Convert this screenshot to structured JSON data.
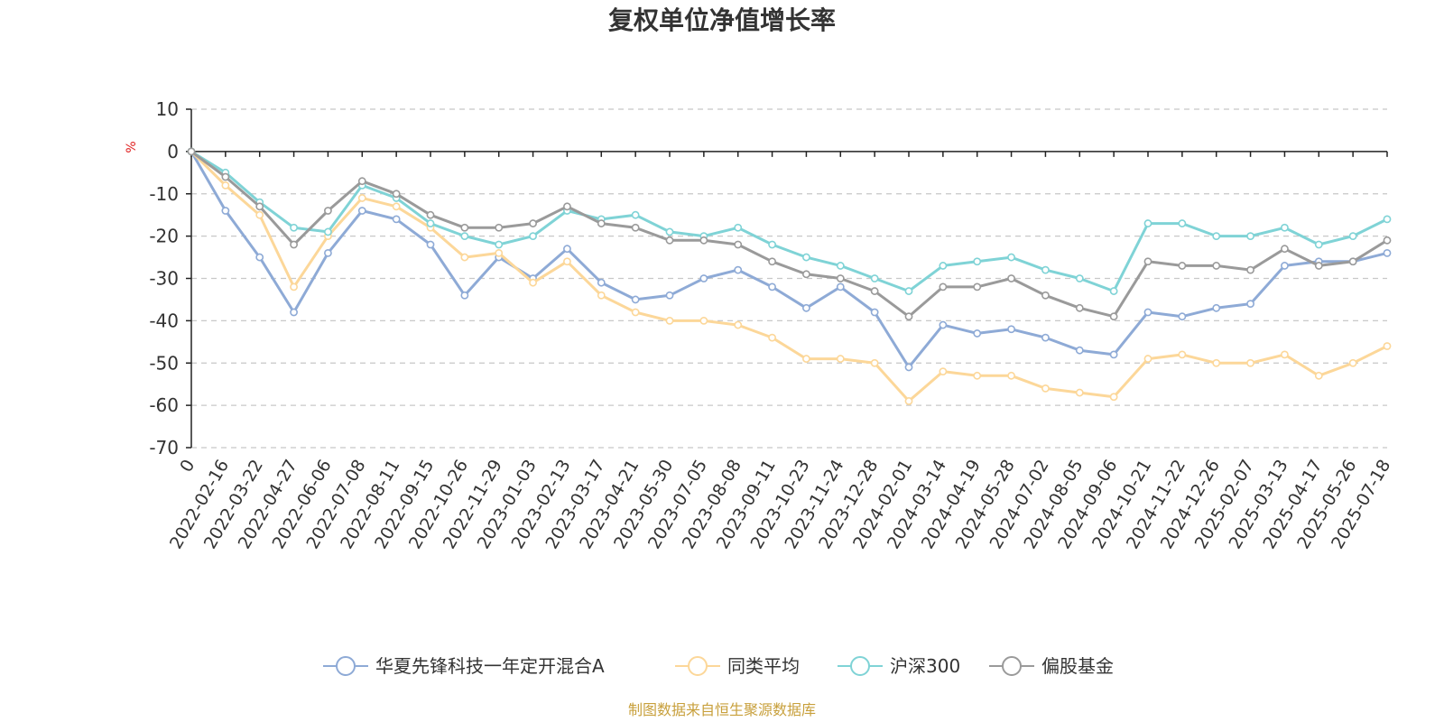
{
  "colors": {
    "fund": "#8eaad6",
    "peer_avg": "#fcd799",
    "csi300": "#7fd3d6",
    "equity_fund": "#9a9a9a",
    "unit": "#e02020",
    "source": "#c8a03c",
    "grid": "#c8c8c8",
    "axis": "#222222"
  },
  "source_note": "制图数据来自恒生聚源数据库",
  "chart_data": {
    "type": "line",
    "title": "复权单位净值增长率",
    "ylabel": "%",
    "ylim": [
      -70,
      10
    ],
    "yticks": [
      10,
      0,
      -10,
      -20,
      -30,
      -40,
      -50,
      -60,
      -70
    ],
    "grid": true,
    "legend_position": "bottom",
    "x_labels": [
      "0",
      "2022-02-16",
      "2022-03-22",
      "2022-04-27",
      "2022-06-06",
      "2022-07-08",
      "2022-08-11",
      "2022-09-15",
      "2022-10-26",
      "2022-11-29",
      "2023-01-03",
      "2023-02-13",
      "2023-03-17",
      "2023-04-21",
      "2023-05-30",
      "2023-07-05",
      "2023-08-08",
      "2023-09-11",
      "2023-10-23",
      "2023-11-24",
      "2023-12-28",
      "2024-02-01",
      "2024-03-14",
      "2024-04-19",
      "2024-05-28",
      "2024-07-02",
      "2024-08-05",
      "2024-09-06",
      "2024-10-21",
      "2024-11-22",
      "2024-12-26",
      "2025-02-07",
      "2025-03-13",
      "2025-04-17",
      "2025-05-26",
      "2025-07-18"
    ],
    "series": [
      {
        "name": "华夏先锋科技一年定开混合A",
        "color_key": "fund",
        "values": [
          0,
          -14,
          -25,
          -38,
          -24,
          -14,
          -16,
          -22,
          -34,
          -25,
          -30,
          -23,
          -31,
          -35,
          -34,
          -30,
          -28,
          -32,
          -37,
          -32,
          -38,
          -51,
          -41,
          -43,
          -42,
          -44,
          -47,
          -48,
          -38,
          -39,
          -37,
          -36,
          -27,
          -26,
          -26,
          -24
        ]
      },
      {
        "name": "同类平均",
        "color_key": "peer_avg",
        "values": [
          0,
          -8,
          -15,
          -32,
          -20,
          -11,
          -13,
          -18,
          -25,
          -24,
          -31,
          -26,
          -34,
          -38,
          -40,
          -40,
          -41,
          -44,
          -49,
          -49,
          -50,
          -59,
          -52,
          -53,
          -53,
          -56,
          -57,
          -58,
          -49,
          -48,
          -50,
          -50,
          -48,
          -53,
          -50,
          -46
        ]
      },
      {
        "name": "沪深300",
        "color_key": "csi300",
        "values": [
          0,
          -5,
          -12,
          -18,
          -19,
          -8,
          -11,
          -17,
          -20,
          -22,
          -20,
          -14,
          -16,
          -15,
          -19,
          -20,
          -18,
          -22,
          -25,
          -27,
          -30,
          -33,
          -27,
          -26,
          -25,
          -28,
          -30,
          -33,
          -17,
          -17,
          -20,
          -20,
          -18,
          -22,
          -20,
          -16
        ]
      },
      {
        "name": "偏股基金",
        "color_key": "equity_fund",
        "values": [
          0,
          -6,
          -13,
          -22,
          -14,
          -7,
          -10,
          -15,
          -18,
          -18,
          -17,
          -13,
          -17,
          -18,
          -21,
          -21,
          -22,
          -26,
          -29,
          -30,
          -33,
          -39,
          -32,
          -32,
          -30,
          -34,
          -37,
          -39,
          -26,
          -27,
          -27,
          -28,
          -23,
          -27,
          -26,
          -21
        ]
      }
    ]
  }
}
